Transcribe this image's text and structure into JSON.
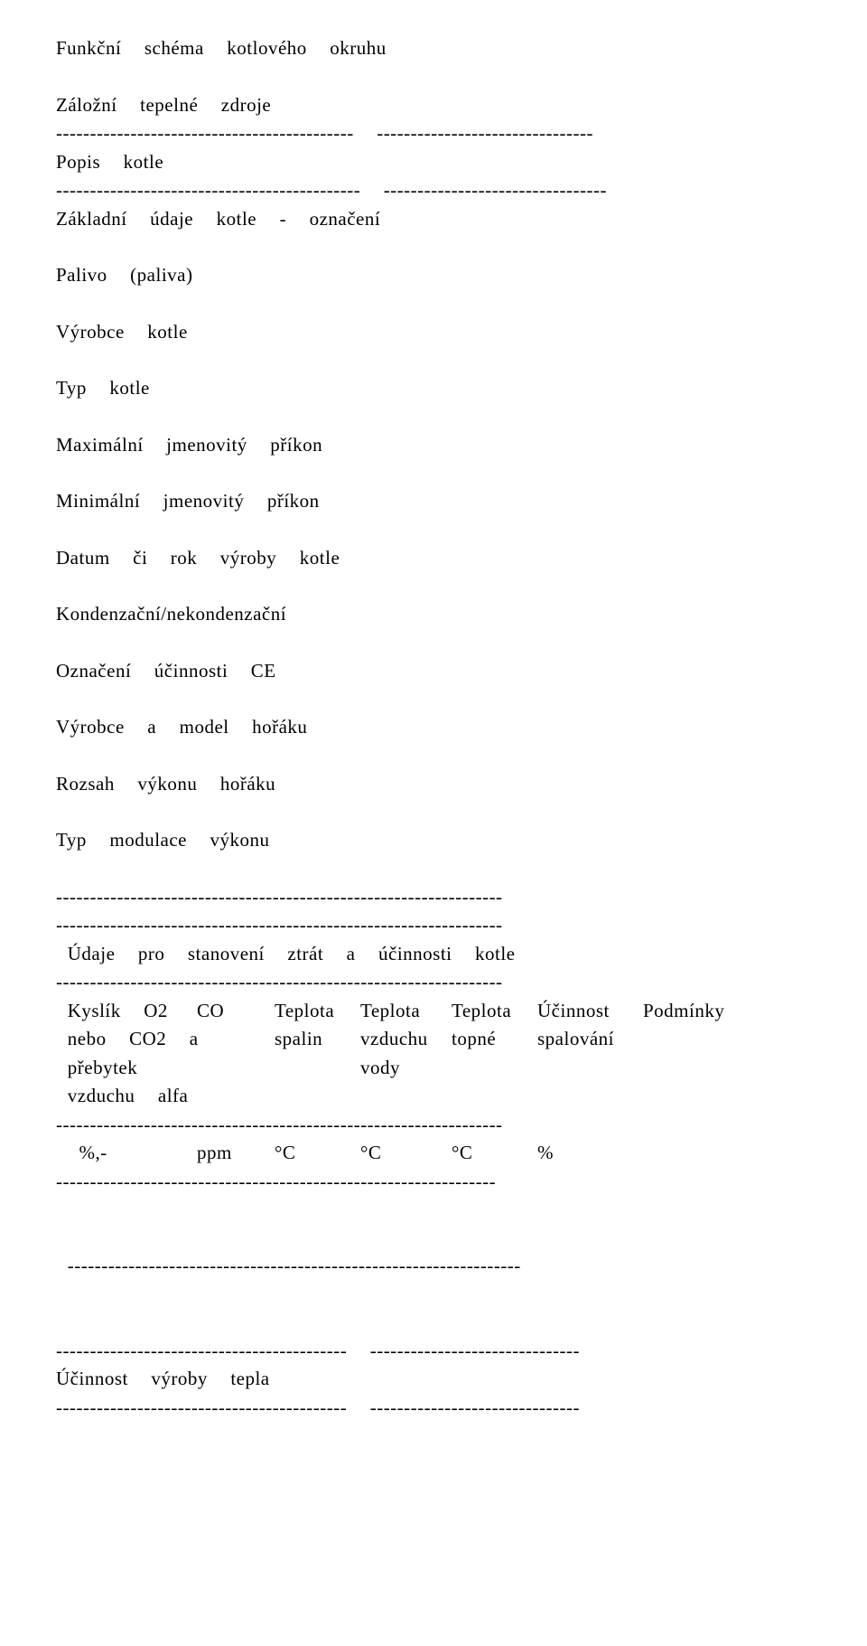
{
  "lines": {
    "l1": "Funkční  schéma  kotlového  okruhu",
    "l2": "Záložní  tepelné  zdroje",
    "l3": "--------------------------------------------  --------------------------------",
    "l4": "Popis  kotle",
    "l5": "---------------------------------------------  ---------------------------------",
    "l6": "Základní  údaje  kotle  -  označení",
    "l7": "Palivo  (paliva)",
    "l8": "Výrobce  kotle",
    "l9": "Typ  kotle",
    "l10": "Maximální  jmenovitý  příkon",
    "l11": "Minimální  jmenovitý  příkon",
    "l12": "Datum  či  rok  výroby  kotle",
    "l13": "Kondenzační/nekondenzační",
    "l14": "Označení  účinnosti  CE",
    "l15": "Výrobce  a  model  hořáku",
    "l16": "Rozsah  výkonu  hořáku",
    "l17": "Typ  modulace  výkonu",
    "l18": "------------------------------------------------------------------",
    "l19": "------------------------------------------------------------------",
    "l20": " Údaje  pro  stanovení  ztrát  a  účinnosti  kotle",
    "l21": "------------------------------------------------------------------",
    "l25": "------------------------------------------------------------------",
    "l27": "-----------------------------------------------------------------",
    "l28": " -------------------------------------------------------------------",
    "l29": "-------------------------------------------  -------------------------------",
    "l30": "Účinnost  výroby  tepla",
    "l31": "-------------------------------------------  -------------------------------"
  },
  "table_header": {
    "r1": {
      "c1": " Kyslík  O2",
      "c2": "CO",
      "c3": "Teplota",
      "c4": "Teplota",
      "c5": "Teplota",
      "c6": "Účinnost",
      "c7": "Podmínky"
    },
    "r2": {
      "c1": " nebo  CO2  a",
      "c2": "",
      "c3": "spalin",
      "c4": "vzduchu",
      "c5": "topné",
      "c6": "spalování",
      "c7": ""
    },
    "r3": {
      "c1": " přebytek",
      "c2": "",
      "c3": "",
      "c4": "vody",
      "c5": "",
      "c6": "",
      "c7": ""
    },
    "r4": {
      "c1": " vzduchu  alfa",
      "c2": "",
      "c3": "",
      "c4": "",
      "c5": "",
      "c6": "",
      "c7": ""
    }
  },
  "table_units": {
    "c1": "  %,-",
    "c2": "ppm",
    "c3": "°C",
    "c4": "°C",
    "c5": "°C",
    "c6": "%",
    "c7": ""
  },
  "col_widths": {
    "c1": "156px",
    "c2": "86px",
    "c3": "95px",
    "c4": "101px",
    "c5": "95px",
    "c6": "117px",
    "c7": "120px"
  }
}
